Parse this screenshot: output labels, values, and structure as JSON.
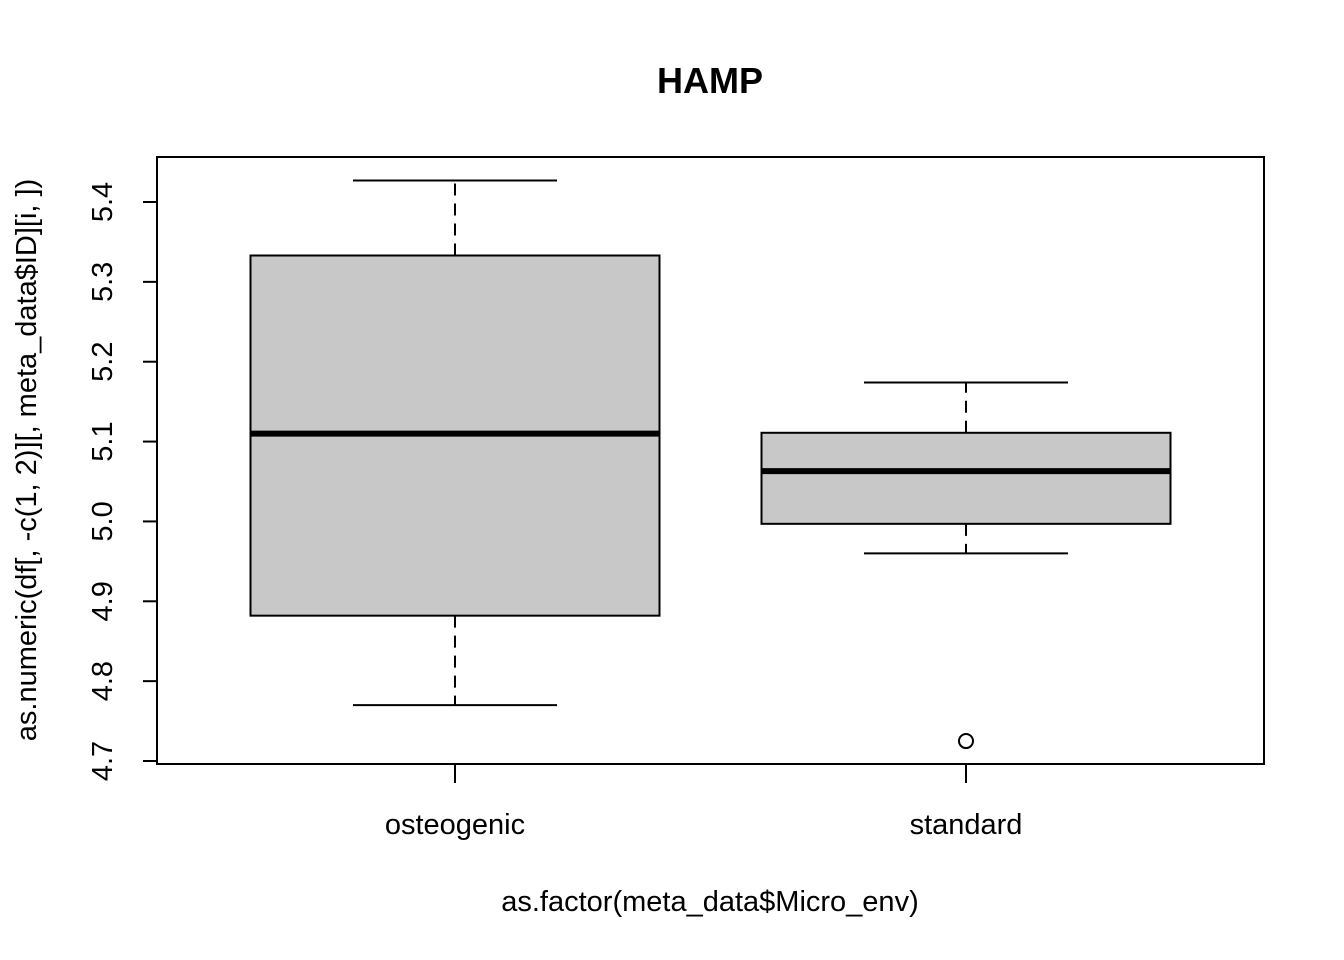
{
  "chart_data": {
    "type": "boxplot",
    "title": "HAMP",
    "xlabel": "as.factor(meta_data$Micro_env)",
    "ylabel": "as.numeric(df[, -c(1, 2)][, meta_data$ID][i, ])",
    "categories": [
      "osteogenic",
      "standard"
    ],
    "ylim": [
      4.7,
      5.44
    ],
    "yticks": [
      "4.7",
      "4.8",
      "4.9",
      "5.0",
      "5.1",
      "5.2",
      "5.3",
      "5.4"
    ],
    "grid": false,
    "box_fill": "#c8c8c8",
    "boxes": [
      {
        "category": "osteogenic",
        "whisker_low": 4.77,
        "q1": 4.882,
        "median": 5.11,
        "q3": 5.333,
        "whisker_high": 5.427,
        "outliers": []
      },
      {
        "category": "standard",
        "whisker_low": 4.96,
        "q1": 4.997,
        "median": 5.063,
        "q3": 5.111,
        "whisker_high": 5.174,
        "outliers": [
          4.725
        ]
      }
    ]
  }
}
